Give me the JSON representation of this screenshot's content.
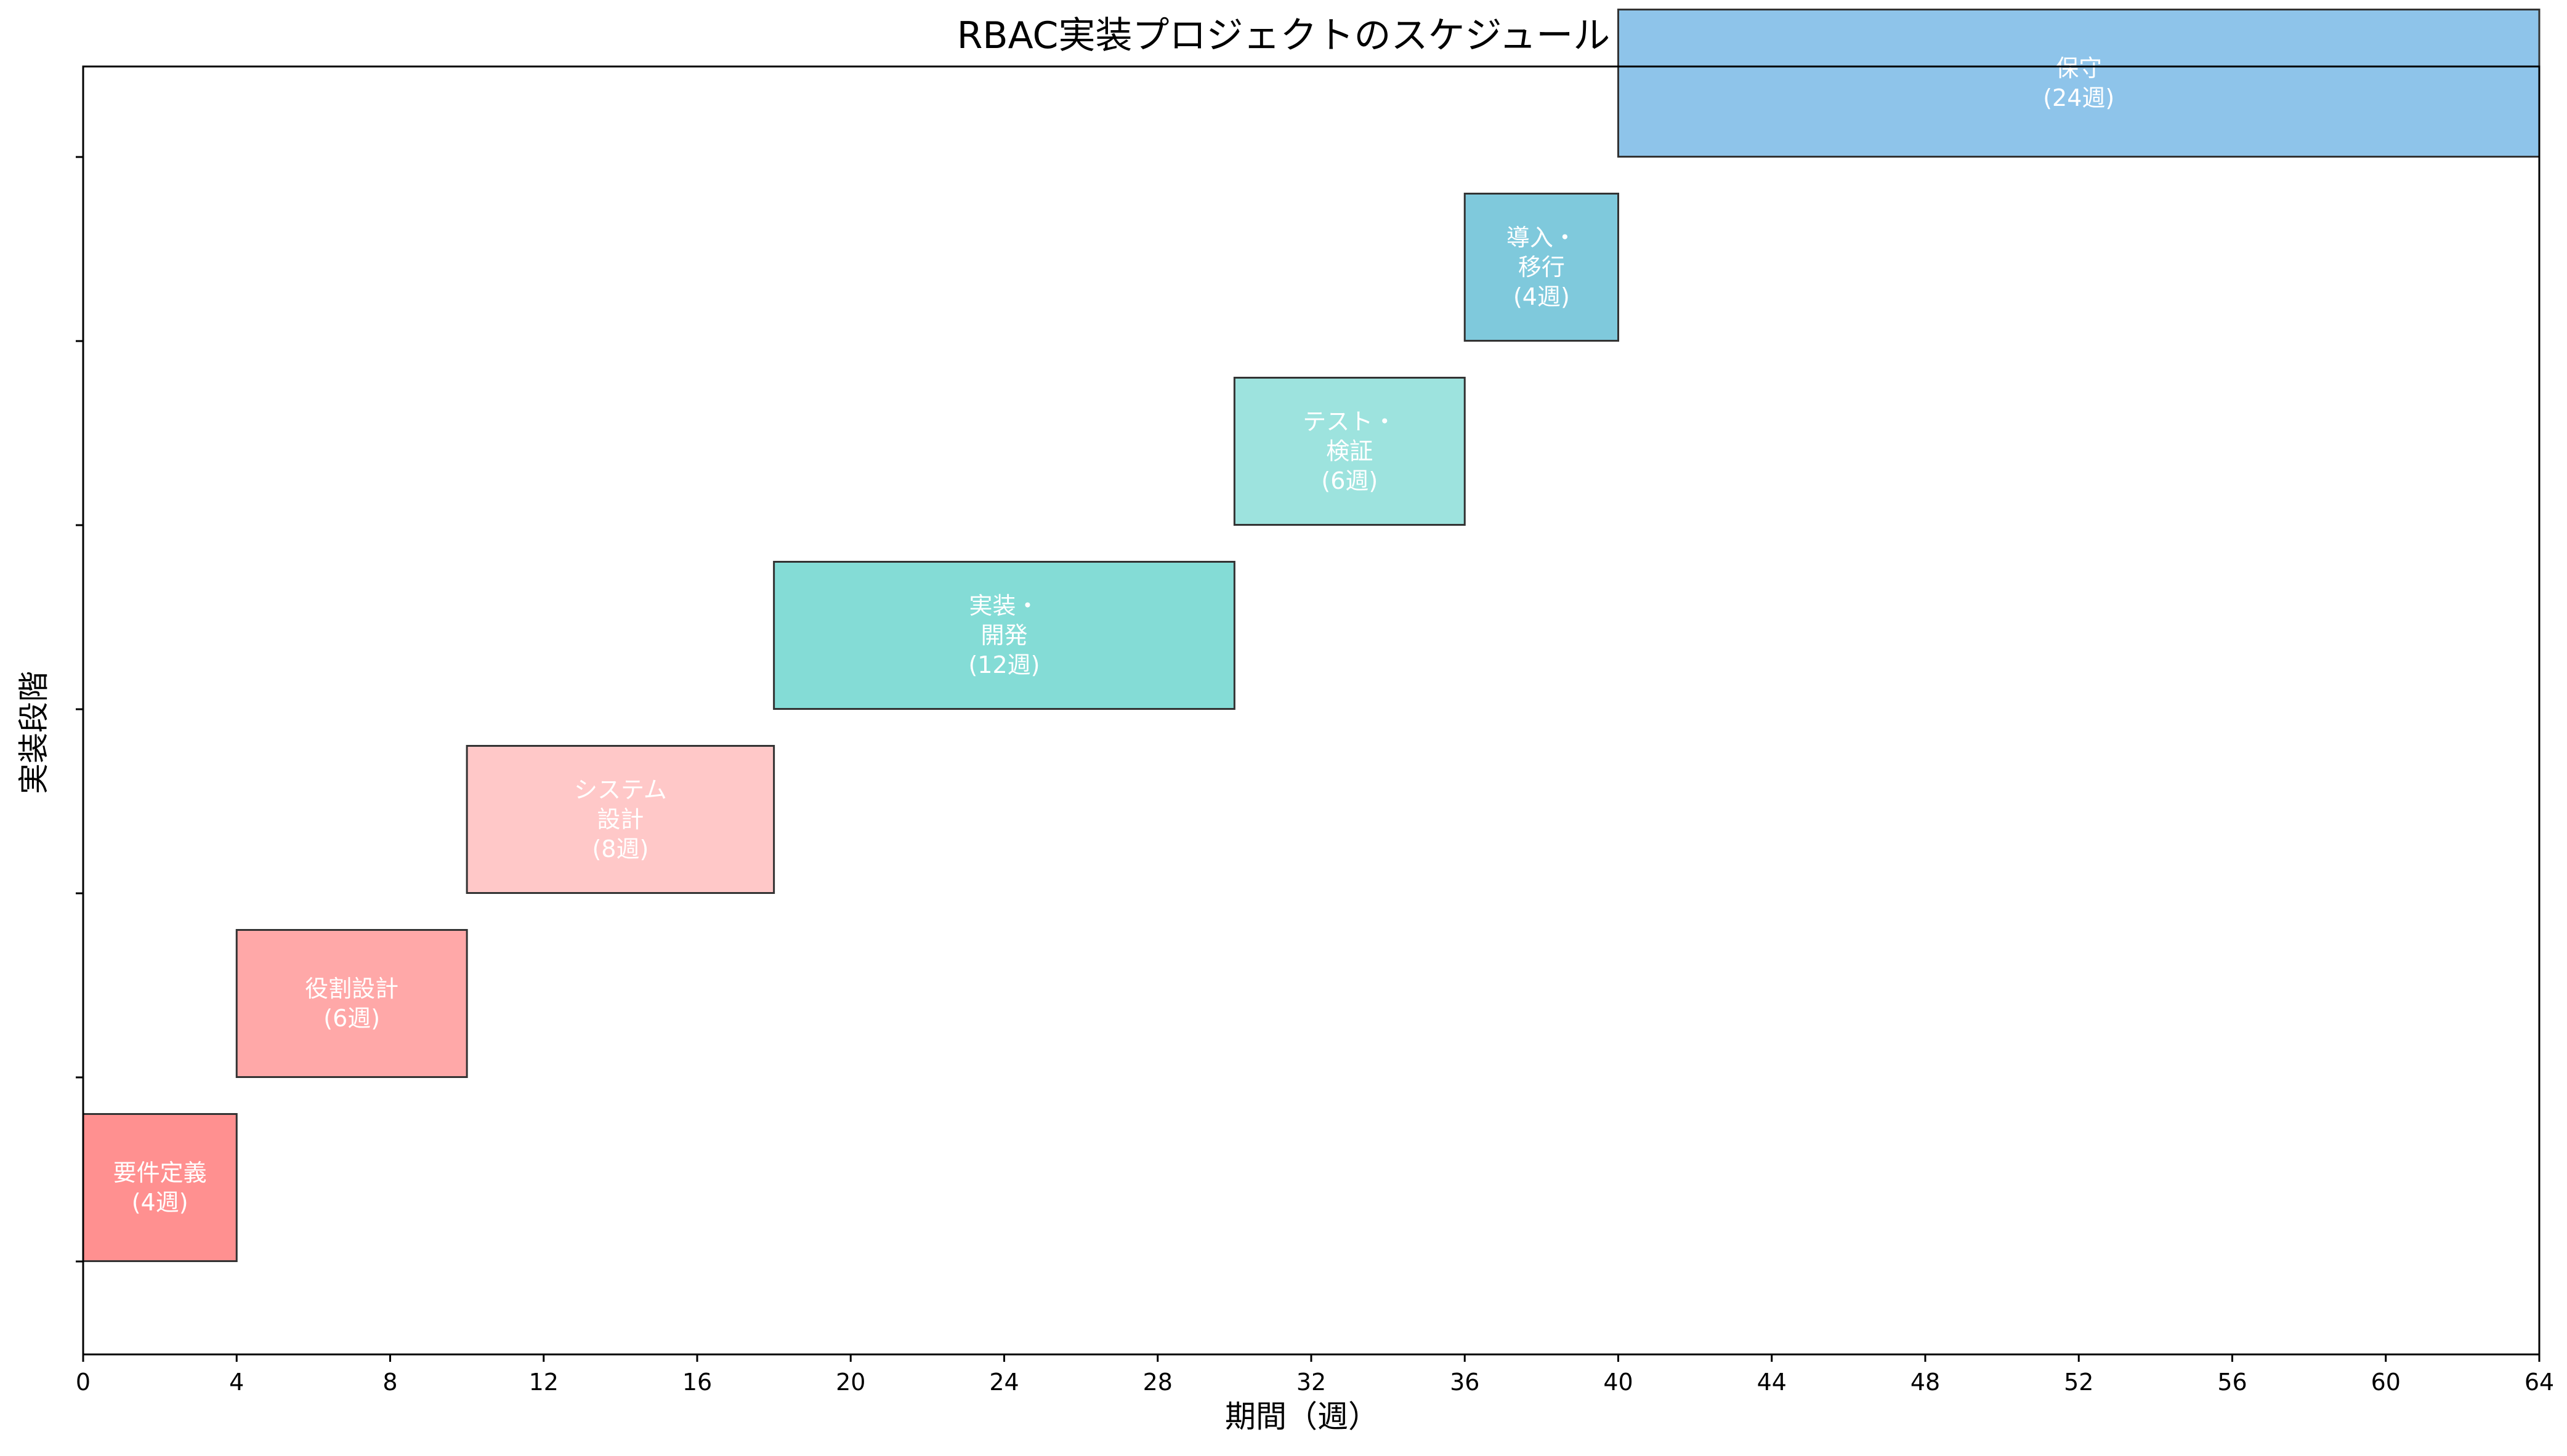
{
  "chart_data": {
    "type": "bar",
    "orientation": "horizontal-gantt",
    "title": "RBAC実装プロジェクトのスケジュール",
    "xlabel": "期間（週）",
    "ylabel": "実装段階",
    "xlim": [
      0,
      64
    ],
    "xticks": [
      0,
      4,
      8,
      12,
      16,
      20,
      24,
      28,
      32,
      36,
      40,
      44,
      48,
      52,
      56,
      60,
      64
    ],
    "grid": false,
    "bars": [
      {
        "label": [
          "要件定義",
          "(4週)"
        ],
        "start": 0,
        "duration": 4,
        "color": "#FF9090"
      },
      {
        "label": [
          "役割設計",
          "(6週)"
        ],
        "start": 4,
        "duration": 6,
        "color": "#FFA8A8"
      },
      {
        "label": [
          "システム",
          "設計",
          "(8週)"
        ],
        "start": 10,
        "duration": 8,
        "color": "#FFC8C8"
      },
      {
        "label": [
          "実装・",
          "開発",
          "(12週)"
        ],
        "start": 18,
        "duration": 12,
        "color": "#84DCD6"
      },
      {
        "label": [
          "テスト・",
          "検証",
          "(6週)"
        ],
        "start": 30,
        "duration": 6,
        "color": "#9DE3DE"
      },
      {
        "label": [
          "導入・",
          "移行",
          "(4週)"
        ],
        "start": 36,
        "duration": 4,
        "color": "#7FC9DC"
      },
      {
        "label": [
          "保守",
          "(24週)"
        ],
        "start": 40,
        "duration": 24,
        "color": "#8EC4EA"
      }
    ]
  }
}
